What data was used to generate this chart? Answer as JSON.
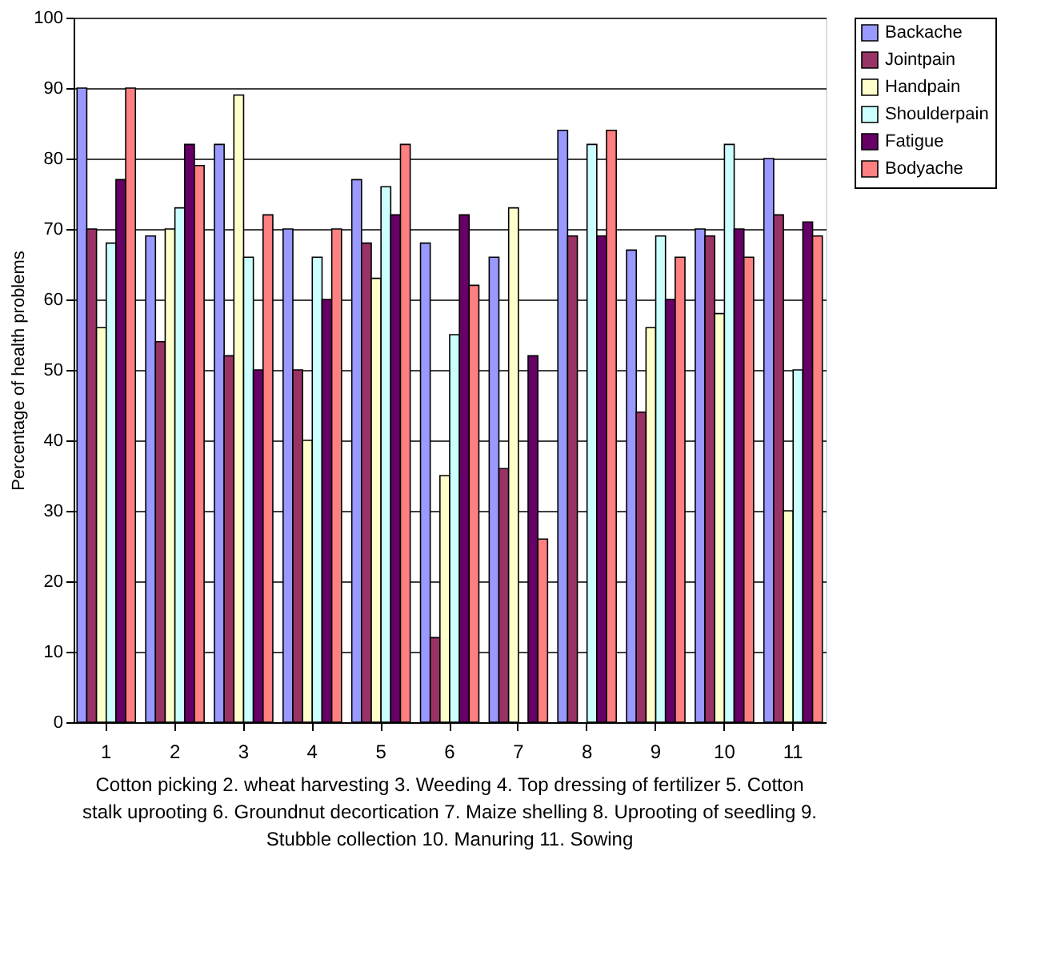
{
  "chart_data": {
    "type": "bar",
    "ylabel": "Percentage of health problems",
    "categories": [
      "1",
      "2",
      "3",
      "4",
      "5",
      "6",
      "7",
      "8",
      "9",
      "10",
      "11"
    ],
    "series": [
      {
        "name": "Backache",
        "color": "#9999ff",
        "values": [
          90,
          69,
          82,
          70,
          77,
          68,
          66,
          84,
          67,
          70,
          80
        ]
      },
      {
        "name": "Jointpain",
        "color": "#993366",
        "values": [
          70,
          54,
          52,
          50,
          68,
          12,
          36,
          69,
          44,
          69,
          72
        ]
      },
      {
        "name": "Handpain",
        "color": "#ffffcc",
        "values": [
          56,
          70,
          89,
          40,
          63,
          35,
          73,
          null,
          56,
          58,
          30
        ]
      },
      {
        "name": "Shoulderpain",
        "color": "#ccffff",
        "values": [
          68,
          73,
          66,
          66,
          76,
          55,
          null,
          82,
          69,
          82,
          50
        ]
      },
      {
        "name": "Fatigue",
        "color": "#660066",
        "values": [
          77,
          82,
          50,
          60,
          72,
          72,
          52,
          69,
          60,
          70,
          71
        ]
      },
      {
        "name": "Bodyache",
        "color": "#ff8080",
        "values": [
          90,
          79,
          72,
          70,
          82,
          62,
          26,
          84,
          66,
          66,
          69
        ]
      }
    ],
    "ylim": [
      0,
      100
    ],
    "yticks": [
      0,
      10,
      20,
      30,
      40,
      50,
      60,
      70,
      80,
      90,
      100
    ],
    "grid": "y",
    "legend": "top right",
    "annotations": [
      "Cotton picking 2. wheat harvesting  3. Weeding 4. Top dressing of fertilizer 5. Cotton stalk uprooting 6. Groundnut decortication 7. Maize shelling 8. Uprooting of seedling 9. Stubble collection 10. Manuring 11. Sowing"
    ]
  }
}
